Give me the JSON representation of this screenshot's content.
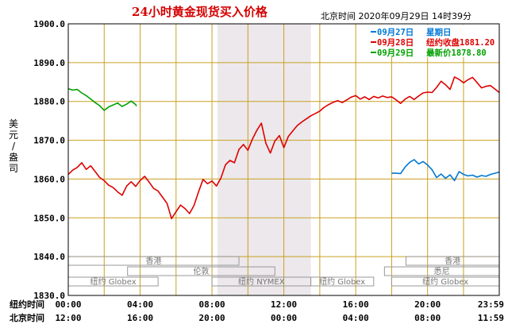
{
  "header": {
    "title": "24小时黄金现货买入价格",
    "datetime": "北京时间  2020年09月29日 14时39分"
  },
  "legend": [
    {
      "date": "09月27日",
      "text": "星期日",
      "color": "#0078d7"
    },
    {
      "date": "09月28日",
      "text": "纽约收盘1881.20",
      "color": "#dd0000"
    },
    {
      "date": "09月29日",
      "text": "最新价1878.80",
      "color": "#00a000"
    }
  ],
  "axis": {
    "y_label_chars": [
      "美",
      "元",
      "/",
      "盎",
      "司"
    ],
    "row_ny_label": "纽约时间",
    "row_bj_label": "北京时间",
    "ny_ticks": [
      "00:00",
      "04:00",
      "08:00",
      "12:00",
      "16:00",
      "20:00",
      "23:59"
    ],
    "bj_ticks": [
      "12:00",
      "16:00",
      "20:00",
      "00:00",
      "04:00",
      "08:00",
      "11:59"
    ]
  },
  "sessions": [
    {
      "label": "香港",
      "start": 0,
      "end": 9.5,
      "row": 0
    },
    {
      "label": "香港",
      "start": 18.8,
      "end": 23.99,
      "row": 0
    },
    {
      "label": "伦敦",
      "start": 3.3,
      "end": 11.5,
      "row": 1
    },
    {
      "label": "悉尼",
      "start": 17.6,
      "end": 23.99,
      "row": 1
    },
    {
      "label": "纽约 Globex",
      "start": 0,
      "end": 5,
      "row": 2
    },
    {
      "label": "纽约 NYMEX",
      "start": 8,
      "end": 13.5,
      "row": 2
    },
    {
      "label": "纽约 Globex",
      "start": 13.5,
      "end": 17,
      "row": 2
    },
    {
      "label": "纽约 Globex",
      "start": 18,
      "end": 23.99,
      "row": 2
    }
  ],
  "chart_data": {
    "type": "line",
    "ylim": [
      1830,
      1900
    ],
    "xlim": [
      0,
      23.99
    ],
    "yticks": [
      1830,
      1840,
      1850,
      1860,
      1870,
      1880,
      1890,
      1900
    ],
    "ytick_labels": [
      "1830.0",
      "1840.0",
      "1850.0",
      "1860.0",
      "1870.0",
      "1880.0",
      "1890.0",
      "1900.0"
    ],
    "xlabel": "",
    "ylabel": "美元/盎司",
    "grid": true,
    "shaded_range": [
      8.3,
      13.5
    ],
    "series": [
      {
        "name": "09月28日",
        "color": "#dd0000",
        "points": [
          [
            0,
            1861.2
          ],
          [
            0.25,
            1862.3
          ],
          [
            0.5,
            1863.0
          ],
          [
            0.75,
            1864.2
          ],
          [
            1.0,
            1862.5
          ],
          [
            1.25,
            1863.4
          ],
          [
            1.5,
            1861.9
          ],
          [
            1.75,
            1860.4
          ],
          [
            2.0,
            1859.6
          ],
          [
            2.25,
            1858.4
          ],
          [
            2.5,
            1857.8
          ],
          [
            2.75,
            1856.7
          ],
          [
            3.0,
            1855.8
          ],
          [
            3.25,
            1858.2
          ],
          [
            3.5,
            1859.3
          ],
          [
            3.75,
            1858.1
          ],
          [
            4.0,
            1859.6
          ],
          [
            4.25,
            1860.7
          ],
          [
            4.5,
            1859.2
          ],
          [
            4.75,
            1857.6
          ],
          [
            5.0,
            1856.9
          ],
          [
            5.25,
            1855.3
          ],
          [
            5.5,
            1853.7
          ],
          [
            5.75,
            1849.8
          ],
          [
            6.0,
            1851.6
          ],
          [
            6.25,
            1853.3
          ],
          [
            6.5,
            1852.4
          ],
          [
            6.75,
            1851.1
          ],
          [
            7.0,
            1853.2
          ],
          [
            7.25,
            1856.7
          ],
          [
            7.5,
            1859.9
          ],
          [
            7.75,
            1858.8
          ],
          [
            8.0,
            1859.5
          ],
          [
            8.25,
            1858.2
          ],
          [
            8.5,
            1860.3
          ],
          [
            8.75,
            1863.7
          ],
          [
            9.0,
            1864.8
          ],
          [
            9.25,
            1864.2
          ],
          [
            9.5,
            1867.6
          ],
          [
            9.75,
            1868.9
          ],
          [
            10.0,
            1867.4
          ],
          [
            10.25,
            1870.3
          ],
          [
            10.5,
            1872.6
          ],
          [
            10.75,
            1874.4
          ],
          [
            11.0,
            1869.2
          ],
          [
            11.25,
            1866.7
          ],
          [
            11.5,
            1869.8
          ],
          [
            11.75,
            1871.2
          ],
          [
            12.0,
            1868.1
          ],
          [
            12.25,
            1871.0
          ],
          [
            12.5,
            1872.4
          ],
          [
            12.75,
            1873.8
          ],
          [
            13.0,
            1874.7
          ],
          [
            13.25,
            1875.5
          ],
          [
            13.5,
            1876.3
          ],
          [
            13.75,
            1876.9
          ],
          [
            14.0,
            1877.5
          ],
          [
            14.25,
            1878.5
          ],
          [
            14.5,
            1879.2
          ],
          [
            14.75,
            1879.8
          ],
          [
            15.0,
            1880.2
          ],
          [
            15.25,
            1879.7
          ],
          [
            15.5,
            1880.4
          ],
          [
            15.75,
            1881.1
          ],
          [
            16.0,
            1881.5
          ],
          [
            16.25,
            1880.6
          ],
          [
            16.5,
            1881.2
          ],
          [
            16.75,
            1880.5
          ],
          [
            17.0,
            1881.3
          ],
          [
            17.25,
            1880.9
          ],
          [
            17.5,
            1881.4
          ],
          [
            17.75,
            1881.0
          ],
          [
            18.0,
            1881.2
          ],
          [
            18.25,
            1880.4
          ],
          [
            18.5,
            1879.5
          ],
          [
            18.75,
            1880.6
          ],
          [
            19.0,
            1881.3
          ],
          [
            19.25,
            1880.5
          ],
          [
            19.5,
            1881.4
          ],
          [
            19.75,
            1882.2
          ],
          [
            20.0,
            1882.4
          ],
          [
            20.25,
            1882.3
          ],
          [
            20.5,
            1883.6
          ],
          [
            20.75,
            1885.2
          ],
          [
            21.0,
            1884.3
          ],
          [
            21.25,
            1883.1
          ],
          [
            21.5,
            1886.3
          ],
          [
            21.75,
            1885.7
          ],
          [
            22.0,
            1884.8
          ],
          [
            22.25,
            1885.6
          ],
          [
            22.5,
            1886.2
          ],
          [
            22.75,
            1884.9
          ],
          [
            23.0,
            1883.5
          ],
          [
            23.25,
            1883.9
          ],
          [
            23.5,
            1884.1
          ],
          [
            23.75,
            1883.2
          ],
          [
            23.99,
            1882.3
          ]
        ]
      },
      {
        "name": "09月27日",
        "color": "#0078d7",
        "points": [
          [
            18.0,
            1861.5
          ],
          [
            18.25,
            1861.5
          ],
          [
            18.5,
            1861.4
          ],
          [
            18.75,
            1863.1
          ],
          [
            19.0,
            1864.3
          ],
          [
            19.25,
            1865.0
          ],
          [
            19.5,
            1863.9
          ],
          [
            19.75,
            1864.5
          ],
          [
            20.0,
            1863.6
          ],
          [
            20.25,
            1862.4
          ],
          [
            20.5,
            1860.4
          ],
          [
            20.75,
            1861.3
          ],
          [
            21.0,
            1860.2
          ],
          [
            21.25,
            1861.1
          ],
          [
            21.5,
            1859.6
          ],
          [
            21.75,
            1861.9
          ],
          [
            22.0,
            1861.2
          ],
          [
            22.25,
            1860.8
          ],
          [
            22.5,
            1861.0
          ],
          [
            22.75,
            1860.5
          ],
          [
            23.0,
            1860.9
          ],
          [
            23.25,
            1860.7
          ],
          [
            23.5,
            1861.2
          ],
          [
            23.75,
            1861.5
          ],
          [
            23.99,
            1861.8
          ]
        ]
      },
      {
        "name": "09月29日",
        "color": "#00a000",
        "points": [
          [
            0,
            1883.3
          ],
          [
            0.25,
            1882.9
          ],
          [
            0.5,
            1883.1
          ],
          [
            0.75,
            1882.2
          ],
          [
            1.0,
            1881.5
          ],
          [
            1.25,
            1880.6
          ],
          [
            1.5,
            1879.7
          ],
          [
            1.75,
            1878.9
          ],
          [
            2.0,
            1877.7
          ],
          [
            2.25,
            1878.6
          ],
          [
            2.5,
            1879.1
          ],
          [
            2.75,
            1879.6
          ],
          [
            3.0,
            1878.7
          ],
          [
            3.25,
            1879.3
          ],
          [
            3.5,
            1880.1
          ],
          [
            3.75,
            1879.2
          ],
          [
            3.8,
            1878.8
          ]
        ]
      }
    ]
  }
}
